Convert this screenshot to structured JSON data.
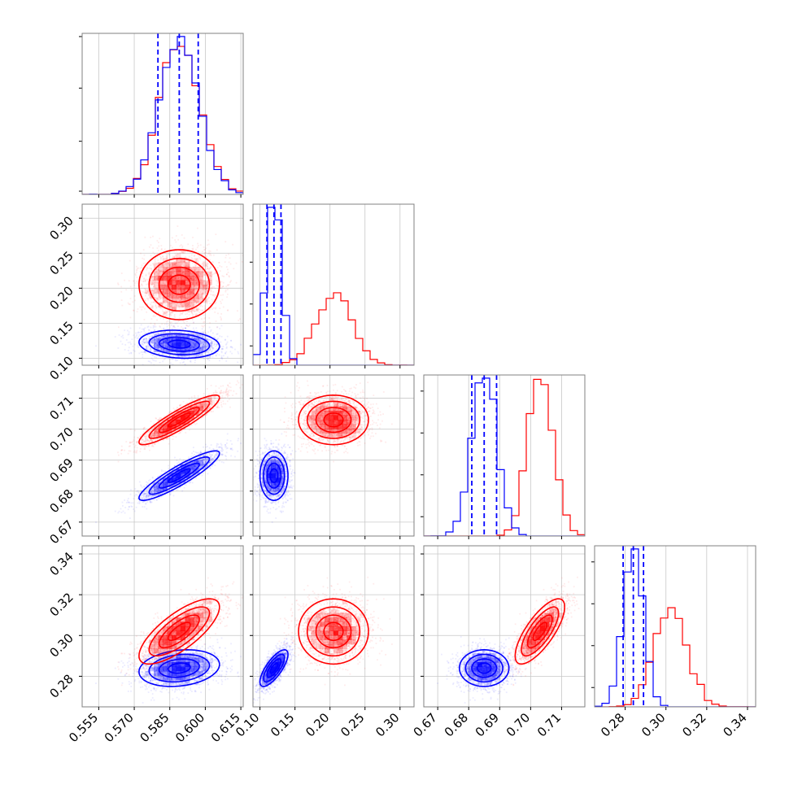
{
  "chart_data": {
    "type": "corner",
    "parameters": [
      {
        "id": "p0",
        "range": [
          0.548,
          0.616
        ],
        "ticks": [
          0.555,
          0.57,
          0.585,
          0.6,
          0.615
        ],
        "tick_labels": [
          "0.555",
          "0.570",
          "0.585",
          "0.600",
          "0.615"
        ]
      },
      {
        "id": "p1",
        "range": [
          0.09,
          0.32
        ],
        "ticks": [
          0.1,
          0.15,
          0.2,
          0.25,
          0.3
        ],
        "tick_labels": [
          "0.10",
          "0.15",
          "0.20",
          "0.25",
          "0.30"
        ]
      },
      {
        "id": "p2",
        "range": [
          0.6655,
          0.7175
        ],
        "ticks": [
          0.67,
          0.68,
          0.69,
          0.7,
          0.71
        ],
        "tick_labels": [
          "0.67",
          "0.68",
          "0.69",
          "0.70",
          "0.71"
        ]
      },
      {
        "id": "p3",
        "range": [
          0.265,
          0.344
        ],
        "ticks": [
          0.28,
          0.3,
          0.32,
          0.34
        ],
        "tick_labels": [
          "0.28",
          "0.30",
          "0.32",
          "0.34"
        ]
      }
    ],
    "series": [
      {
        "color": "#0000ff",
        "mean": [
          0.589,
          0.12,
          0.685,
          0.284
        ],
        "sd": [
          0.0085,
          0.01,
          0.004,
          0.0045
        ],
        "corr": [
          [
            1,
            -0.15,
            0.9,
            0.2
          ],
          [
            -0.15,
            1,
            0.0,
            0.75
          ],
          [
            0.9,
            0.0,
            1,
            0.0
          ],
          [
            0.2,
            0.75,
            0.0,
            1
          ]
        ],
        "quantiles": [
          [
            0.58,
            0.589,
            0.597
          ],
          [
            0.11,
            0.12,
            0.13
          ],
          [
            0.681,
            0.685,
            0.689
          ],
          [
            0.279,
            0.284,
            0.289
          ]
        ]
      },
      {
        "color": "#ff0000",
        "mean": [
          0.589,
          0.205,
          0.703,
          0.302
        ],
        "sd": [
          0.0085,
          0.025,
          0.004,
          0.008
        ],
        "corr": [
          [
            1,
            0.0,
            0.9,
            0.75
          ],
          [
            0.0,
            1,
            0.0,
            0.0
          ],
          [
            0.9,
            0.0,
            1,
            0.75
          ],
          [
            0.75,
            0.0,
            0.75,
            1
          ]
        ],
        "quantiles": null
      }
    ],
    "grid": true,
    "legend": "none"
  }
}
